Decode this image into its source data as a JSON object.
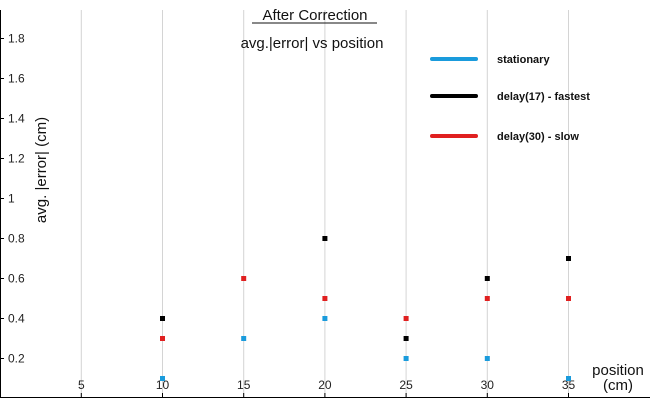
{
  "chart_data": {
    "type": "scatter",
    "title": "After Correction",
    "subtitle": "avg.|error| vs position",
    "xlabel": [
      "position",
      "(cm)"
    ],
    "ylabel": "avg.  |error| (cm)",
    "xlim": [
      0,
      37
    ],
    "ylim": [
      0.05,
      1.9
    ],
    "xticks": [
      5,
      10,
      15,
      20,
      25,
      30,
      35
    ],
    "yticks": [
      0.2,
      0.4,
      0.6,
      0.8,
      1,
      1.2,
      1.4,
      1.6,
      1.8
    ],
    "ytick_labels": [
      "0.2",
      "0.4",
      "0.6",
      "0.8",
      "1",
      "1.2",
      "1.4",
      "1.6",
      "1.8"
    ],
    "grid": "vertical",
    "legend": "top-right",
    "series": [
      {
        "name": "stationary",
        "color": "#1a9bdc",
        "points": [
          [
            10,
            0.1
          ],
          [
            15,
            0.3
          ],
          [
            20,
            0.4
          ],
          [
            25,
            0.2
          ],
          [
            30,
            0.2
          ],
          [
            35,
            0.1
          ]
        ]
      },
      {
        "name": "delay(17) - fastest",
        "color": "#000000",
        "points": [
          [
            10,
            0.4
          ],
          [
            20,
            0.8
          ],
          [
            25,
            0.3
          ],
          [
            30,
            0.6
          ],
          [
            35,
            0.7
          ]
        ]
      },
      {
        "name": "delay(30) - slow",
        "color": "#e02020",
        "points": [
          [
            10,
            0.3
          ],
          [
            15,
            0.6
          ],
          [
            20,
            0.5
          ],
          [
            25,
            0.4
          ],
          [
            30,
            0.5
          ],
          [
            35,
            0.5
          ]
        ]
      }
    ]
  }
}
